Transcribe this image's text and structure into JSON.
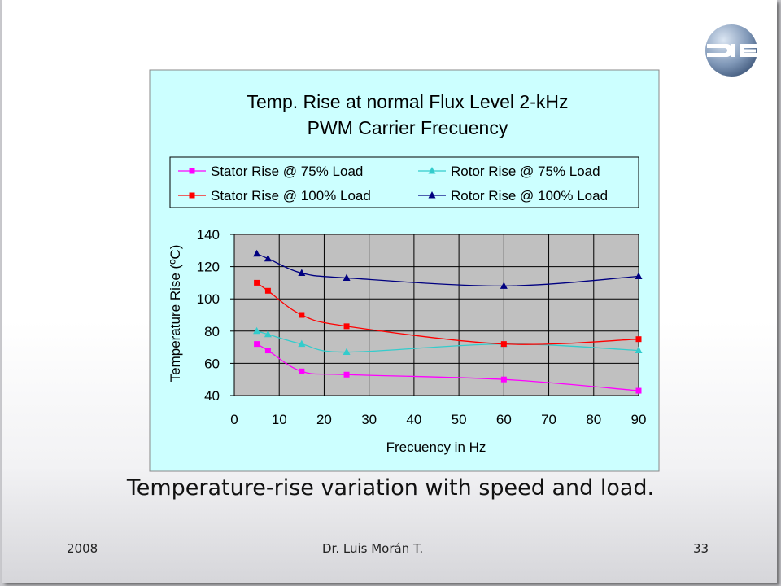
{
  "slide": {
    "caption": "Temperature-rise variation with speed and load.",
    "footer_year": "2008",
    "footer_author": "Dr. Luis Morán T.",
    "footer_page": "33",
    "logo_icon": "die-logo-icon"
  },
  "colors": {
    "chart_background": "#ccffff",
    "plot_background": "#c0c0c0",
    "stator_75": "#ff00ff",
    "rotor_75": "#33cccc",
    "stator_100": "#ff0000",
    "rotor_100": "#000080"
  },
  "chart_data": {
    "type": "line",
    "title_line1": "Temp. Rise at normal Flux Level 2-kHz",
    "title_line2": "PWM Carrier Frecuency",
    "xlabel": "Frecuency in Hz",
    "ylabel": "Temperature Rise (ºC)",
    "xlim": [
      0,
      90
    ],
    "ylim": [
      40,
      140
    ],
    "xticks": [
      0,
      10,
      20,
      30,
      40,
      50,
      60,
      70,
      80,
      90
    ],
    "yticks": [
      40,
      60,
      80,
      100,
      120,
      140
    ],
    "grid": true,
    "legend_position": "top",
    "series": [
      {
        "name": "Stator Rise @ 75% Load",
        "marker": "square",
        "color": "#ff00ff",
        "x": [
          5,
          7.5,
          15,
          25,
          60,
          90
        ],
        "y": [
          72,
          68,
          55,
          53,
          50,
          43
        ]
      },
      {
        "name": "Rotor Rise @ 75% Load",
        "marker": "triangle",
        "color": "#33cccc",
        "x": [
          5,
          7.5,
          15,
          25,
          60,
          90
        ],
        "y": [
          80,
          78,
          72,
          67,
          72,
          68
        ]
      },
      {
        "name": "Stator Rise @ 100% Load",
        "marker": "square",
        "color": "#ff0000",
        "x": [
          5,
          7.5,
          15,
          25,
          60,
          90
        ],
        "y": [
          110,
          105,
          90,
          83,
          72,
          75
        ]
      },
      {
        "name": "Rotor Rise @ 100% Load",
        "marker": "triangle",
        "color": "#000080",
        "x": [
          5,
          7.5,
          15,
          25,
          60,
          90
        ],
        "y": [
          128,
          125,
          116,
          113,
          108,
          114
        ]
      }
    ]
  }
}
